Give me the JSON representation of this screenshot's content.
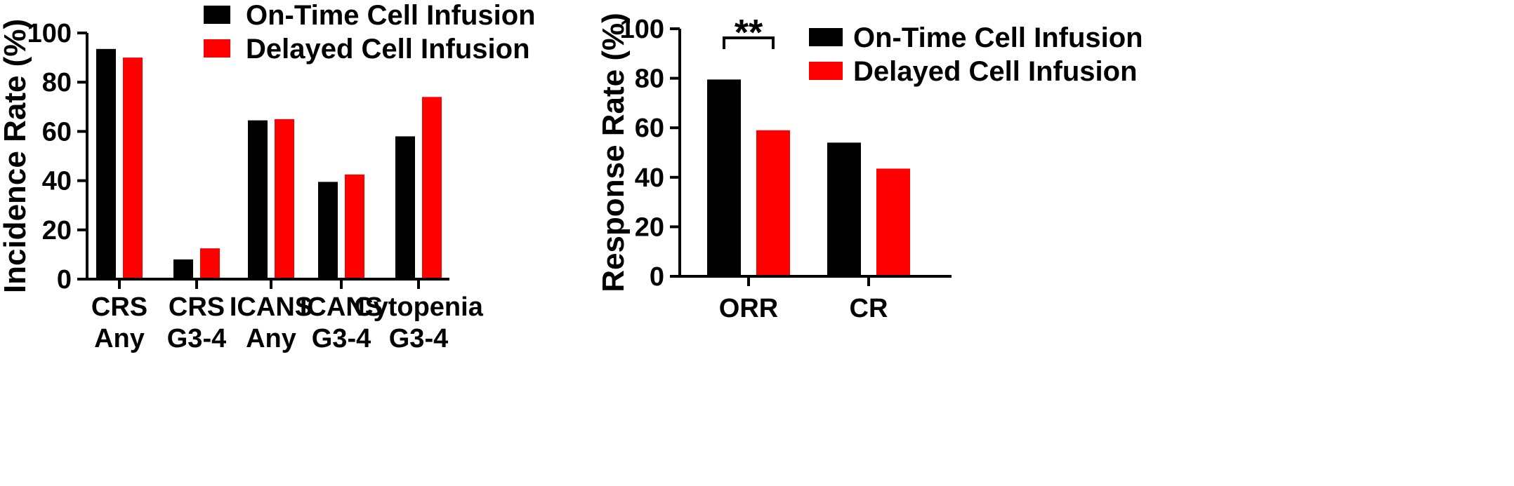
{
  "chart_data": [
    {
      "type": "bar",
      "ylabel": "Incidence Rate (%)",
      "xlabel": "",
      "ylim": [
        0,
        100
      ],
      "yticks": [
        0,
        20,
        40,
        60,
        80,
        100
      ],
      "categories": [
        [
          "CRS",
          "Any"
        ],
        [
          "CRS",
          "G3-4"
        ],
        [
          "ICANS",
          "Any"
        ],
        [
          "ICANS",
          "G3-4"
        ],
        [
          "Cytopenia",
          "G3-4"
        ]
      ],
      "series": [
        {
          "name": "On-Time Cell Infusion",
          "color": "#000000",
          "values": [
            93.5,
            8,
            64.5,
            39.5,
            58
          ]
        },
        {
          "name": "Delayed Cell Infusion",
          "color": "#ff0000",
          "values": [
            90,
            12.5,
            65,
            42.5,
            74
          ]
        }
      ],
      "legend": "top-right",
      "grid": false
    },
    {
      "type": "bar",
      "ylabel": "Response Rate (%)",
      "xlabel": "",
      "ylim": [
        0,
        100
      ],
      "yticks": [
        0,
        20,
        40,
        60,
        80,
        100
      ],
      "categories": [
        [
          "ORR"
        ],
        [
          "CR"
        ]
      ],
      "series": [
        {
          "name": "On-Time Cell Infusion",
          "color": "#000000",
          "values": [
            79.5,
            54
          ]
        },
        {
          "name": "Delayed Cell Infusion",
          "color": "#ff0000",
          "values": [
            59,
            43.5
          ]
        }
      ],
      "annotations": [
        {
          "text": "**",
          "category_index": 0
        }
      ],
      "legend": "top-right",
      "grid": false
    }
  ]
}
